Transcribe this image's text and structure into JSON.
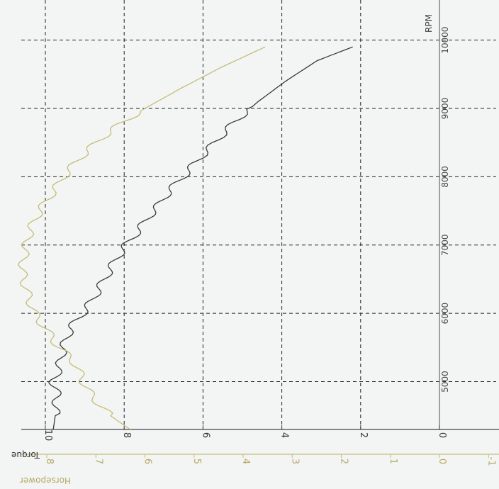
{
  "chart_data": {
    "type": "line",
    "title": "",
    "x_axis": {
      "label": "RPM",
      "ticks": [
        5000,
        6000,
        7000,
        8000,
        9000,
        10000
      ],
      "range": [
        4300,
        10400
      ],
      "grid": true
    },
    "torque_axis": {
      "label": "Torque",
      "ticks": [
        0,
        2,
        4,
        6,
        8,
        10
      ],
      "range": [
        0,
        10.6
      ],
      "color": "#333333"
    },
    "horsepower_axis": {
      "label": "Horsepower",
      "ticks": [
        -1,
        0,
        1,
        2,
        3,
        4,
        5,
        6,
        7,
        8
      ],
      "range": [
        -1.3,
        9.0
      ],
      "color": "#c8bc78"
    },
    "series": [
      {
        "name": "Torque",
        "color": "#3a3a3a",
        "axis": "torque",
        "x": [
          4300,
          4500,
          4800,
          5000,
          5200,
          5500,
          5800,
          6000,
          6200,
          6400,
          6600,
          6800,
          7000,
          7200,
          7400,
          7600,
          7800,
          8000,
          8200,
          8500,
          8800,
          9100,
          9400,
          9700,
          9900
        ],
        "y": [
          9.8,
          9.75,
          9.7,
          9.8,
          9.65,
          9.55,
          9.35,
          9.05,
          8.8,
          8.6,
          8.4,
          8.2,
          7.95,
          7.65,
          7.4,
          7.1,
          6.85,
          6.5,
          6.2,
          5.7,
          5.2,
          4.6,
          3.9,
          3.1,
          2.2
        ]
      },
      {
        "name": "Horsepower",
        "color": "#c8bc78",
        "axis": "horsepower",
        "x": [
          4300,
          4500,
          4800,
          5000,
          5300,
          5500,
          5800,
          6000,
          6300,
          6600,
          6900,
          7200,
          7500,
          7800,
          8100,
          8400,
          8700,
          9000,
          9300,
          9600,
          9900
        ],
        "y": [
          6.3,
          6.7,
          7.1,
          7.25,
          7.45,
          7.75,
          8.05,
          8.25,
          8.4,
          8.5,
          8.45,
          8.35,
          8.15,
          7.85,
          7.55,
          7.15,
          6.65,
          6.0,
          5.25,
          4.45,
          3.55
        ]
      }
    ],
    "grid": true
  }
}
